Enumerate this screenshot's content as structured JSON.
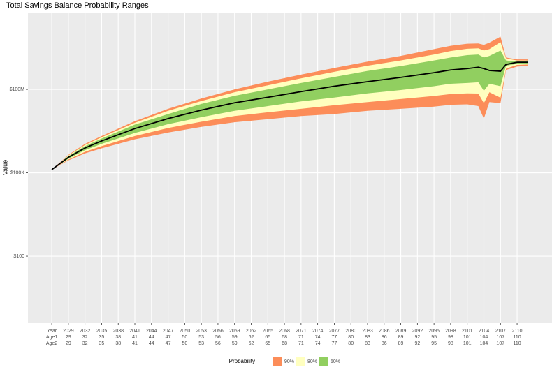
{
  "chart_data": {
    "type": "fan",
    "title": "Total Savings Balance Probability Ranges",
    "y_label": "Value",
    "legend_title": "Probability",
    "log_y": true,
    "grid": true,
    "legend_position": "bottom",
    "x": [
      2026,
      2029,
      2032,
      2035,
      2041,
      2047,
      2053,
      2059,
      2065,
      2071,
      2077,
      2083,
      2089,
      2095,
      2098,
      2101,
      2103,
      2104,
      2105,
      2107,
      2108,
      2110,
      2112
    ],
    "bands": [
      {
        "name": "90%",
        "color": "#FC8D59",
        "lower": [
          130000.0,
          280000.0,
          500000.0,
          760000.0,
          1600000.0,
          2800000.0,
          4500000.0,
          6600000.0,
          8500000.0,
          11000000.0,
          13000000.0,
          17000000.0,
          20000000.0,
          24000000.0,
          28000000.0,
          29000000.0,
          25000000.0,
          8900000.0,
          35000000.0,
          32000000.0,
          500000000.0,
          660000000.0,
          710000000.0
        ],
        "upper": [
          130000.0,
          440000.0,
          1100000.0,
          2100000.0,
          7200000.0,
          20000000.0,
          47000000.0,
          100000000.0,
          190000000.0,
          340000000.0,
          590000000.0,
          1000000000.0,
          1600000000.0,
          2800000000.0,
          3700000000.0,
          4400000000.0,
          4500000000.0,
          4000000000.0,
          4800000000.0,
          7900000000.0,
          1400000000.0,
          1200000000.0,
          1200000000.0
        ]
      },
      {
        "name": "80%",
        "color": "#FFFFBF",
        "lower": [
          130000.0,
          300000.0,
          570000.0,
          910000.0,
          2100000.0,
          4100000.0,
          6900000.0,
          11000000.0,
          15000000.0,
          20000000.0,
          27000000.0,
          35000000.0,
          45000000.0,
          58000000.0,
          68000000.0,
          72000000.0,
          71000000.0,
          32000000.0,
          79000000.0,
          50000000.0,
          560000000.0,
          760000000.0,
          790000000.0
        ],
        "upper": [
          130000.0,
          420000.0,
          1000000.0,
          1900000.0,
          6300000.0,
          17000000.0,
          38000000.0,
          79000000.0,
          140000000.0,
          250000000.0,
          430000000.0,
          710000000.0,
          1100000000.0,
          1800000000.0,
          2400000000.0,
          2900000000.0,
          3000000000.0,
          2500000000.0,
          2800000000.0,
          5000000000.0,
          1300000000.0,
          1100000000.0,
          1100000000.0
        ]
      },
      {
        "name": "50%",
        "color": "#91CF60",
        "lower": [
          130000.0,
          320000.0,
          650000.0,
          1100000.0,
          2700000.0,
          5600000.0,
          10000000.0,
          17000000.0,
          25000000.0,
          37000000.0,
          51000000.0,
          72000000.0,
          95000000.0,
          130000000.0,
          160000000.0,
          170000000.0,
          180000000.0,
          89000000.0,
          160000000.0,
          130000000.0,
          710000000.0,
          830000000.0,
          850000000.0
        ],
        "upper": [
          130000.0,
          400000.0,
          910000.0,
          1700000.0,
          5400000.0,
          13000000.0,
          30000000.0,
          59000000.0,
          100000000.0,
          170000000.0,
          280000000.0,
          460000000.0,
          690000000.0,
          1100000000.0,
          1400000000.0,
          1700000000.0,
          1800000000.0,
          1400000000.0,
          1600000000.0,
          2500000000.0,
          1100000000.0,
          1000000000.0,
          1100000000.0
        ]
      }
    ],
    "median": {
      "color": "#000000",
      "values": [
        130000.0,
        360000.0,
        780000.0,
        1400000.0,
        3900000.0,
        8900000.0,
        18000000.0,
        33000000.0,
        52000000.0,
        83000000.0,
        130000000.0,
        190000000.0,
        270000000.0,
        400000000.0,
        500000000.0,
        560000000.0,
        630000000.0,
        560000000.0,
        480000000.0,
        450000000.0,
        790000000.0,
        950000000.0,
        950000000.0
      ]
    },
    "xlim": [
      2021.7,
      2116.3
    ],
    "xticks": [
      {
        "value": 2026,
        "label": "Year"
      },
      2029,
      2032,
      2035,
      2038,
      2041,
      2044,
      2047,
      2050,
      2053,
      2056,
      2059,
      2062,
      2065,
      2068,
      2071,
      2074,
      2077,
      2080,
      2083,
      2086,
      2089,
      2092,
      2095,
      2098,
      2101,
      2104,
      2107,
      2110
    ],
    "age1_labels": [
      "Age1",
      29,
      32,
      35,
      38,
      41,
      44,
      47,
      50,
      53,
      56,
      59,
      62,
      65,
      68,
      71,
      74,
      77,
      80,
      83,
      86,
      89,
      92,
      95,
      98,
      101,
      104,
      107,
      110
    ],
    "age2_labels": [
      "Age2",
      29,
      32,
      35,
      38,
      41,
      44,
      47,
      50,
      53,
      56,
      59,
      62,
      65,
      68,
      71,
      74,
      77,
      80,
      83,
      86,
      89,
      92,
      95,
      98,
      101,
      104,
      107,
      110
    ],
    "ylim": [
      0.39,
      58000000000.0
    ],
    "yticks": [
      {
        "value": 100,
        "label": "$100"
      },
      {
        "value": 100000,
        "label": "$100K"
      },
      {
        "value": 100000000,
        "label": "$100M"
      }
    ]
  }
}
